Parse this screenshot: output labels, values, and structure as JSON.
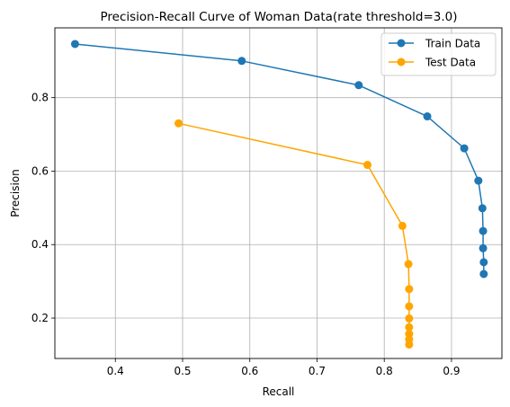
{
  "chart_data": {
    "type": "line",
    "title": "Precision-Recall Curve of Woman Data(rate threshold=3.0)",
    "xlabel": "Recall",
    "ylabel": "Precision",
    "xlim": [
      0.31,
      0.975
    ],
    "ylim": [
      0.09,
      0.99
    ],
    "xticks": [
      0.4,
      0.5,
      0.6,
      0.7,
      0.8,
      0.9
    ],
    "xtick_labels": [
      "0.4",
      "0.5",
      "0.6",
      "0.7",
      "0.8",
      "0.9"
    ],
    "yticks": [
      0.2,
      0.4,
      0.6,
      0.8
    ],
    "ytick_labels": [
      "0.2",
      "0.4",
      "0.6",
      "0.8"
    ],
    "grid": true,
    "legend": "upper right",
    "series": [
      {
        "name": "Train Data",
        "color": "#1f77b4",
        "marker": "circle",
        "x": [
          0.34,
          0.588,
          0.762,
          0.864,
          0.919,
          0.94,
          0.946,
          0.947,
          0.947,
          0.948,
          0.948
        ],
        "y": [
          0.946,
          0.9,
          0.834,
          0.749,
          0.662,
          0.574,
          0.499,
          0.437,
          0.39,
          0.352,
          0.32
        ]
      },
      {
        "name": "Test Data",
        "color": "#ffa500",
        "marker": "circle",
        "x": [
          0.494,
          0.775,
          0.827,
          0.836,
          0.837,
          0.837,
          0.837,
          0.837,
          0.837,
          0.837,
          0.837
        ],
        "y": [
          0.73,
          0.617,
          0.451,
          0.347,
          0.279,
          0.232,
          0.199,
          0.175,
          0.157,
          0.142,
          0.128
        ]
      }
    ]
  }
}
